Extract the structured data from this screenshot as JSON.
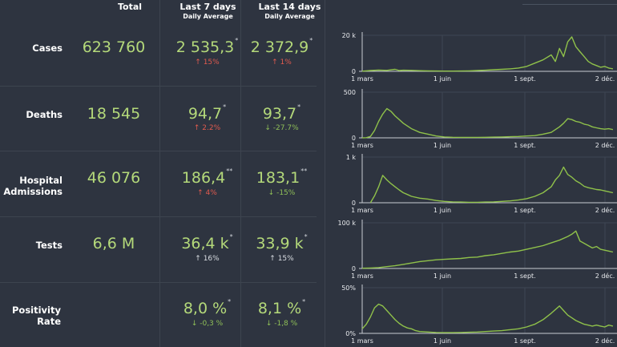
{
  "headers": {
    "total": "Total",
    "last7": "Last 7 days",
    "last7_sub": "Daily Average",
    "last14": "Last 14 days",
    "last14_sub": "Daily Average"
  },
  "rows": [
    {
      "label": "Cases",
      "total": "623 760",
      "avg7": "2 535,3",
      "avg7_mark": "*",
      "chg7": "↑ 15%",
      "avg14": "2 372,9",
      "avg14_mark": "*",
      "chg14": "↑ 1%"
    },
    {
      "label": "Deaths",
      "total": "18 545",
      "avg7": "94,7",
      "avg7_mark": "*",
      "chg7": "↑ 2.2%",
      "avg14": "93,7",
      "avg14_mark": "*",
      "chg14": "↓ -27.7%"
    },
    {
      "label": "Hospital Admissions",
      "total": "46 076",
      "avg7": "186,4",
      "avg7_mark": "**",
      "chg7": "↑ 4%",
      "avg14": "183,1",
      "avg14_mark": "**",
      "chg14": "↓ -15%"
    },
    {
      "label": "Tests",
      "total": "6,6 M",
      "avg7": "36,4 k",
      "avg7_mark": "*",
      "chg7": "↑ 16%",
      "avg14": "33,9 k",
      "avg14_mark": "*",
      "chg14": "↑ 15%"
    },
    {
      "label": "Positivity Rate",
      "total": "",
      "avg7": "8,0 %",
      "avg7_mark": "*",
      "chg7": "↓ -0,3 %",
      "avg14": "8,1 %",
      "avg14_mark": "*",
      "chg14": "↓ -1,8 %"
    }
  ],
  "chart_data": [
    {
      "type": "line",
      "title": "Cases",
      "ytick_labels": [
        "0",
        "20 k"
      ],
      "ylim": [
        0,
        22000
      ],
      "xtick_labels": [
        "1 mars",
        "1 juin",
        "1 sept.",
        "2 déc."
      ],
      "series": [
        {
          "name": "Cases",
          "color": "#8fc14a",
          "x": [
            0,
            10,
            20,
            30,
            40,
            45,
            50,
            60,
            70,
            80,
            90,
            100,
            110,
            120,
            130,
            140,
            150,
            160,
            170,
            180,
            190,
            200,
            210,
            220,
            230,
            235,
            240,
            245,
            250,
            255,
            260,
            265,
            270,
            275,
            280,
            285,
            290,
            295,
            300,
            305
          ],
          "values": [
            100,
            500,
            800,
            600,
            1200,
            500,
            700,
            600,
            400,
            300,
            200,
            150,
            150,
            200,
            300,
            500,
            700,
            1000,
            1200,
            1500,
            2000,
            3000,
            5000,
            7000,
            10000,
            6000,
            14000,
            9000,
            18000,
            21000,
            15000,
            12000,
            9000,
            6000,
            4500,
            3500,
            2500,
            3000,
            2000,
            1500
          ]
        }
      ]
    },
    {
      "type": "line",
      "title": "Deaths",
      "ytick_labels": [
        "0",
        "500"
      ],
      "ylim": [
        0,
        500
      ],
      "xtick_labels": [
        "1 mars",
        "1 juin",
        "1 sept.",
        "2 déc."
      ],
      "series": [
        {
          "name": "Deaths",
          "color": "#8fc14a",
          "x": [
            0,
            5,
            10,
            15,
            20,
            25,
            30,
            35,
            40,
            45,
            50,
            55,
            60,
            65,
            70,
            80,
            90,
            100,
            110,
            120,
            130,
            140,
            150,
            160,
            170,
            180,
            190,
            200,
            210,
            220,
            230,
            240,
            245,
            250,
            255,
            260,
            265,
            270,
            275,
            280,
            285,
            290,
            295,
            300,
            305
          ],
          "values": [
            0,
            2,
            15,
            80,
            180,
            260,
            320,
            290,
            240,
            200,
            160,
            130,
            100,
            80,
            60,
            40,
            20,
            10,
            6,
            5,
            5,
            5,
            6,
            8,
            10,
            12,
            15,
            20,
            25,
            40,
            60,
            120,
            160,
            210,
            200,
            180,
            170,
            150,
            140,
            120,
            110,
            100,
            95,
            100,
            90
          ]
        }
      ]
    },
    {
      "type": "line",
      "title": "Hospital Admissions",
      "ytick_labels": [
        "0",
        "1 k"
      ],
      "ylim": [
        0,
        1000
      ],
      "xtick_labels": [
        "1 mars",
        "1 juin",
        "1 sept.",
        "2 déc."
      ],
      "series": [
        {
          "name": "Hospital Admissions",
          "color": "#8fc14a",
          "x": [
            10,
            15,
            20,
            25,
            30,
            35,
            40,
            45,
            50,
            55,
            60,
            70,
            80,
            90,
            100,
            110,
            120,
            130,
            140,
            150,
            160,
            170,
            180,
            190,
            200,
            210,
            220,
            230,
            235,
            240,
            245,
            250,
            255,
            260,
            265,
            270,
            275,
            280,
            285,
            290,
            295,
            300,
            305
          ],
          "values": [
            0,
            150,
            350,
            600,
            500,
            420,
            350,
            280,
            220,
            180,
            140,
            100,
            80,
            50,
            30,
            20,
            15,
            10,
            10,
            15,
            20,
            30,
            40,
            60,
            90,
            140,
            220,
            350,
            500,
            600,
            780,
            620,
            560,
            480,
            430,
            360,
            330,
            310,
            290,
            280,
            260,
            240,
            220
          ]
        }
      ]
    },
    {
      "type": "line",
      "title": "Tests",
      "ytick_labels": [
        "0",
        "100 k"
      ],
      "ylim": [
        0,
        100000
      ],
      "xtick_labels": [
        "1 mars",
        "1 juin",
        "1 sept.",
        "2 déc."
      ],
      "series": [
        {
          "name": "Tests",
          "color": "#8fc14a",
          "x": [
            0,
            10,
            20,
            30,
            40,
            50,
            60,
            70,
            80,
            90,
            100,
            110,
            120,
            130,
            140,
            150,
            160,
            170,
            180,
            190,
            200,
            210,
            220,
            230,
            240,
            250,
            255,
            260,
            265,
            270,
            275,
            280,
            285,
            290,
            295,
            300,
            305
          ],
          "values": [
            500,
            1000,
            2000,
            4000,
            6000,
            9000,
            12000,
            15000,
            17000,
            19000,
            20000,
            21000,
            22000,
            24000,
            25000,
            28000,
            30000,
            33000,
            36000,
            38000,
            42000,
            46000,
            50000,
            56000,
            62000,
            70000,
            75000,
            82000,
            60000,
            55000,
            50000,
            45000,
            48000,
            42000,
            40000,
            38000,
            36000
          ]
        }
      ]
    },
    {
      "type": "line",
      "title": "Positivity Rate",
      "ytick_labels": [
        "0%",
        "50%"
      ],
      "ylim": [
        0,
        50
      ],
      "xtick_labels": [
        "1 mars",
        "1 juin",
        "1 sept.",
        "2 déc."
      ],
      "series": [
        {
          "name": "Positivity Rate",
          "color": "#8fc14a",
          "x": [
            0,
            5,
            10,
            15,
            20,
            25,
            30,
            35,
            40,
            45,
            50,
            55,
            60,
            65,
            70,
            80,
            90,
            100,
            110,
            120,
            130,
            140,
            150,
            160,
            170,
            180,
            190,
            200,
            210,
            220,
            230,
            240,
            245,
            250,
            255,
            260,
            265,
            270,
            275,
            280,
            285,
            290,
            295,
            300,
            305
          ],
          "values": [
            5,
            10,
            18,
            28,
            32,
            30,
            25,
            20,
            15,
            11,
            8,
            6,
            5,
            3,
            2,
            1.5,
            1,
            0.8,
            0.8,
            1,
            1.2,
            1.5,
            2,
            2.5,
            3,
            4,
            5,
            7,
            10,
            15,
            22,
            30,
            25,
            20,
            17,
            14,
            12,
            10,
            9,
            8,
            9,
            8,
            7,
            9,
            8
          ]
        }
      ]
    }
  ]
}
